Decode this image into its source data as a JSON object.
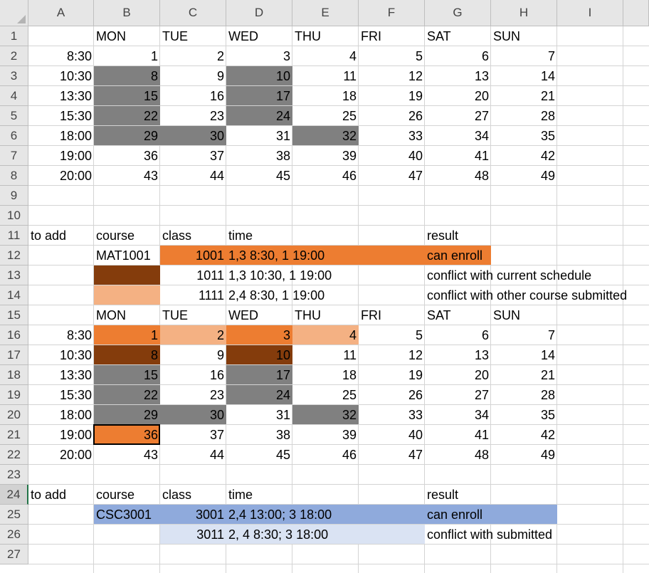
{
  "colors": {
    "gray": "#808080",
    "orange": "#ed7d31",
    "brown": "#843c0c",
    "light_orange": "#f4b183",
    "blue": "#8faadc",
    "light_blue": "#dae3f3"
  },
  "columns": [
    "A",
    "B",
    "C",
    "D",
    "E",
    "F",
    "G",
    "H",
    "I"
  ],
  "rows": [
    "1",
    "2",
    "3",
    "4",
    "5",
    "6",
    "7",
    "8",
    "9",
    "10",
    "11",
    "12",
    "13",
    "14",
    "15",
    "16",
    "17",
    "18",
    "19",
    "20",
    "21",
    "22",
    "23",
    "24",
    "25",
    "26",
    "27"
  ],
  "active_row": "24",
  "selected_cell": "B21",
  "cells": [
    {
      "ref": "B1",
      "value": "MON",
      "align": "left"
    },
    {
      "ref": "C1",
      "value": "TUE",
      "align": "left"
    },
    {
      "ref": "D1",
      "value": "WED",
      "align": "left"
    },
    {
      "ref": "E1",
      "value": "THU",
      "align": "left"
    },
    {
      "ref": "F1",
      "value": "FRI",
      "align": "left"
    },
    {
      "ref": "G1",
      "value": "SAT",
      "align": "left"
    },
    {
      "ref": "H1",
      "value": "SUN",
      "align": "left"
    },
    {
      "ref": "A2",
      "value": "8:30",
      "align": "right"
    },
    {
      "ref": "B2",
      "value": "1",
      "align": "right"
    },
    {
      "ref": "C2",
      "value": "2",
      "align": "right"
    },
    {
      "ref": "D2",
      "value": "3",
      "align": "right"
    },
    {
      "ref": "E2",
      "value": "4",
      "align": "right"
    },
    {
      "ref": "F2",
      "value": "5",
      "align": "right"
    },
    {
      "ref": "G2",
      "value": "6",
      "align": "right"
    },
    {
      "ref": "H2",
      "value": "7",
      "align": "right"
    },
    {
      "ref": "A3",
      "value": "10:30",
      "align": "right"
    },
    {
      "ref": "B3",
      "value": "8",
      "align": "right",
      "fill": "gray"
    },
    {
      "ref": "C3",
      "value": "9",
      "align": "right"
    },
    {
      "ref": "D3",
      "value": "10",
      "align": "right",
      "fill": "gray"
    },
    {
      "ref": "E3",
      "value": "11",
      "align": "right"
    },
    {
      "ref": "F3",
      "value": "12",
      "align": "right"
    },
    {
      "ref": "G3",
      "value": "13",
      "align": "right"
    },
    {
      "ref": "H3",
      "value": "14",
      "align": "right"
    },
    {
      "ref": "A4",
      "value": "13:30",
      "align": "right"
    },
    {
      "ref": "B4",
      "value": "15",
      "align": "right",
      "fill": "gray"
    },
    {
      "ref": "C4",
      "value": "16",
      "align": "right"
    },
    {
      "ref": "D4",
      "value": "17",
      "align": "right",
      "fill": "gray"
    },
    {
      "ref": "E4",
      "value": "18",
      "align": "right"
    },
    {
      "ref": "F4",
      "value": "19",
      "align": "right"
    },
    {
      "ref": "G4",
      "value": "20",
      "align": "right"
    },
    {
      "ref": "H4",
      "value": "21",
      "align": "right"
    },
    {
      "ref": "A5",
      "value": "15:30",
      "align": "right"
    },
    {
      "ref": "B5",
      "value": "22",
      "align": "right",
      "fill": "gray"
    },
    {
      "ref": "C5",
      "value": "23",
      "align": "right"
    },
    {
      "ref": "D5",
      "value": "24",
      "align": "right",
      "fill": "gray"
    },
    {
      "ref": "E5",
      "value": "25",
      "align": "right"
    },
    {
      "ref": "F5",
      "value": "26",
      "align": "right"
    },
    {
      "ref": "G5",
      "value": "27",
      "align": "right"
    },
    {
      "ref": "H5",
      "value": "28",
      "align": "right"
    },
    {
      "ref": "A6",
      "value": "18:00",
      "align": "right"
    },
    {
      "ref": "B6",
      "value": "29",
      "align": "right",
      "fill": "gray"
    },
    {
      "ref": "C6",
      "value": "30",
      "align": "right",
      "fill": "gray"
    },
    {
      "ref": "D6",
      "value": "31",
      "align": "right"
    },
    {
      "ref": "E6",
      "value": "32",
      "align": "right",
      "fill": "gray"
    },
    {
      "ref": "F6",
      "value": "33",
      "align": "right"
    },
    {
      "ref": "G6",
      "value": "34",
      "align": "right"
    },
    {
      "ref": "H6",
      "value": "35",
      "align": "right"
    },
    {
      "ref": "A7",
      "value": "19:00",
      "align": "right"
    },
    {
      "ref": "B7",
      "value": "36",
      "align": "right"
    },
    {
      "ref": "C7",
      "value": "37",
      "align": "right"
    },
    {
      "ref": "D7",
      "value": "38",
      "align": "right"
    },
    {
      "ref": "E7",
      "value": "39",
      "align": "right"
    },
    {
      "ref": "F7",
      "value": "40",
      "align": "right"
    },
    {
      "ref": "G7",
      "value": "41",
      "align": "right"
    },
    {
      "ref": "H7",
      "value": "42",
      "align": "right"
    },
    {
      "ref": "A8",
      "value": "20:00",
      "align": "right"
    },
    {
      "ref": "B8",
      "value": "43",
      "align": "right"
    },
    {
      "ref": "C8",
      "value": "44",
      "align": "right"
    },
    {
      "ref": "D8",
      "value": "45",
      "align": "right"
    },
    {
      "ref": "E8",
      "value": "46",
      "align": "right"
    },
    {
      "ref": "F8",
      "value": "47",
      "align": "right"
    },
    {
      "ref": "G8",
      "value": "48",
      "align": "right"
    },
    {
      "ref": "H8",
      "value": "49",
      "align": "right"
    },
    {
      "ref": "A11",
      "value": "to add",
      "align": "left"
    },
    {
      "ref": "B11",
      "value": "course",
      "align": "left"
    },
    {
      "ref": "C11",
      "value": "class",
      "align": "left"
    },
    {
      "ref": "D11",
      "value": "time",
      "align": "left"
    },
    {
      "ref": "G11",
      "value": "result",
      "align": "left"
    },
    {
      "ref": "B12",
      "value": "MAT1001",
      "align": "left"
    },
    {
      "ref": "C12",
      "value": "1001",
      "align": "right",
      "fill": "orange"
    },
    {
      "ref": "D12",
      "value": "1,3 8:30, 1 19:00",
      "align": "left",
      "fill": "orange",
      "fillspan": 3
    },
    {
      "ref": "G12",
      "value": "can enroll",
      "align": "left",
      "fill": "orange"
    },
    {
      "ref": "B13",
      "value": "",
      "align": "left",
      "fill": "brown"
    },
    {
      "ref": "C13",
      "value": "1011",
      "align": "right"
    },
    {
      "ref": "D13",
      "value": "1,3 10:30, 1 19:00",
      "align": "left"
    },
    {
      "ref": "G13",
      "value": "conflict with current schedule",
      "align": "left"
    },
    {
      "ref": "B14",
      "value": "",
      "align": "left",
      "fill": "light_orange"
    },
    {
      "ref": "C14",
      "value": "1111",
      "align": "right"
    },
    {
      "ref": "D14",
      "value": "2,4 8:30, 1 19:00",
      "align": "left"
    },
    {
      "ref": "G14",
      "value": "conflict with other course submitted",
      "align": "left"
    },
    {
      "ref": "B15",
      "value": "MON",
      "align": "left"
    },
    {
      "ref": "C15",
      "value": "TUE",
      "align": "left"
    },
    {
      "ref": "D15",
      "value": "WED",
      "align": "left"
    },
    {
      "ref": "E15",
      "value": "THU",
      "align": "left"
    },
    {
      "ref": "F15",
      "value": "FRI",
      "align": "left"
    },
    {
      "ref": "G15",
      "value": "SAT",
      "align": "left"
    },
    {
      "ref": "H15",
      "value": "SUN",
      "align": "left"
    },
    {
      "ref": "A16",
      "value": "8:30",
      "align": "right"
    },
    {
      "ref": "B16",
      "value": "1",
      "align": "right",
      "fill": "orange"
    },
    {
      "ref": "C16",
      "value": "2",
      "align": "right",
      "fill": "light_orange"
    },
    {
      "ref": "D16",
      "value": "3",
      "align": "right",
      "fill": "orange"
    },
    {
      "ref": "E16",
      "value": "4",
      "align": "right",
      "fill": "light_orange"
    },
    {
      "ref": "F16",
      "value": "5",
      "align": "right"
    },
    {
      "ref": "G16",
      "value": "6",
      "align": "right"
    },
    {
      "ref": "H16",
      "value": "7",
      "align": "right"
    },
    {
      "ref": "A17",
      "value": "10:30",
      "align": "right"
    },
    {
      "ref": "B17",
      "value": "8",
      "align": "right",
      "fill": "brown"
    },
    {
      "ref": "C17",
      "value": "9",
      "align": "right"
    },
    {
      "ref": "D17",
      "value": "10",
      "align": "right",
      "fill": "brown"
    },
    {
      "ref": "E17",
      "value": "11",
      "align": "right"
    },
    {
      "ref": "F17",
      "value": "12",
      "align": "right"
    },
    {
      "ref": "G17",
      "value": "13",
      "align": "right"
    },
    {
      "ref": "H17",
      "value": "14",
      "align": "right"
    },
    {
      "ref": "A18",
      "value": "13:30",
      "align": "right"
    },
    {
      "ref": "B18",
      "value": "15",
      "align": "right",
      "fill": "gray"
    },
    {
      "ref": "C18",
      "value": "16",
      "align": "right"
    },
    {
      "ref": "D18",
      "value": "17",
      "align": "right",
      "fill": "gray"
    },
    {
      "ref": "E18",
      "value": "18",
      "align": "right"
    },
    {
      "ref": "F18",
      "value": "19",
      "align": "right"
    },
    {
      "ref": "G18",
      "value": "20",
      "align": "right"
    },
    {
      "ref": "H18",
      "value": "21",
      "align": "right"
    },
    {
      "ref": "A19",
      "value": "15:30",
      "align": "right"
    },
    {
      "ref": "B19",
      "value": "22",
      "align": "right",
      "fill": "gray"
    },
    {
      "ref": "C19",
      "value": "23",
      "align": "right"
    },
    {
      "ref": "D19",
      "value": "24",
      "align": "right",
      "fill": "gray"
    },
    {
      "ref": "E19",
      "value": "25",
      "align": "right"
    },
    {
      "ref": "F19",
      "value": "26",
      "align": "right"
    },
    {
      "ref": "G19",
      "value": "27",
      "align": "right"
    },
    {
      "ref": "H19",
      "value": "28",
      "align": "right"
    },
    {
      "ref": "A20",
      "value": "18:00",
      "align": "right"
    },
    {
      "ref": "B20",
      "value": "29",
      "align": "right",
      "fill": "gray"
    },
    {
      "ref": "C20",
      "value": "30",
      "align": "right",
      "fill": "gray"
    },
    {
      "ref": "D20",
      "value": "31",
      "align": "right"
    },
    {
      "ref": "E20",
      "value": "32",
      "align": "right",
      "fill": "gray"
    },
    {
      "ref": "F20",
      "value": "33",
      "align": "right"
    },
    {
      "ref": "G20",
      "value": "34",
      "align": "right"
    },
    {
      "ref": "H20",
      "value": "35",
      "align": "right"
    },
    {
      "ref": "A21",
      "value": "19:00",
      "align": "right"
    },
    {
      "ref": "B21",
      "value": "36",
      "align": "right",
      "fill": "orange"
    },
    {
      "ref": "C21",
      "value": "37",
      "align": "right"
    },
    {
      "ref": "D21",
      "value": "38",
      "align": "right"
    },
    {
      "ref": "E21",
      "value": "39",
      "align": "right"
    },
    {
      "ref": "F21",
      "value": "40",
      "align": "right"
    },
    {
      "ref": "G21",
      "value": "41",
      "align": "right"
    },
    {
      "ref": "H21",
      "value": "42",
      "align": "right"
    },
    {
      "ref": "A22",
      "value": "20:00",
      "align": "right"
    },
    {
      "ref": "B22",
      "value": "43",
      "align": "right"
    },
    {
      "ref": "C22",
      "value": "44",
      "align": "right"
    },
    {
      "ref": "D22",
      "value": "45",
      "align": "right"
    },
    {
      "ref": "E22",
      "value": "46",
      "align": "right"
    },
    {
      "ref": "F22",
      "value": "47",
      "align": "right"
    },
    {
      "ref": "G22",
      "value": "48",
      "align": "right"
    },
    {
      "ref": "H22",
      "value": "49",
      "align": "right"
    },
    {
      "ref": "A24",
      "value": "to add",
      "align": "left"
    },
    {
      "ref": "B24",
      "value": "course",
      "align": "left"
    },
    {
      "ref": "C24",
      "value": "class",
      "align": "left"
    },
    {
      "ref": "D24",
      "value": "time",
      "align": "left"
    },
    {
      "ref": "G24",
      "value": "result",
      "align": "left"
    },
    {
      "ref": "B25",
      "value": "CSC3001",
      "align": "left",
      "fill": "blue"
    },
    {
      "ref": "C25",
      "value": "3001",
      "align": "right",
      "fill": "blue"
    },
    {
      "ref": "D25",
      "value": "2,4 13:00; 3 18:00",
      "align": "left",
      "fill": "blue",
      "fillspan": 3
    },
    {
      "ref": "G25",
      "value": "can enroll",
      "align": "left",
      "fill": "blue",
      "fillspan": 2
    },
    {
      "ref": "C26",
      "value": "3011",
      "align": "right",
      "fill": "light_blue"
    },
    {
      "ref": "D26",
      "value": "2, 4 8:30; 3 18:00",
      "align": "left",
      "fill": "light_blue",
      "fillspan": 3
    },
    {
      "ref": "G26",
      "value": "conflict with submitted",
      "align": "left"
    }
  ]
}
